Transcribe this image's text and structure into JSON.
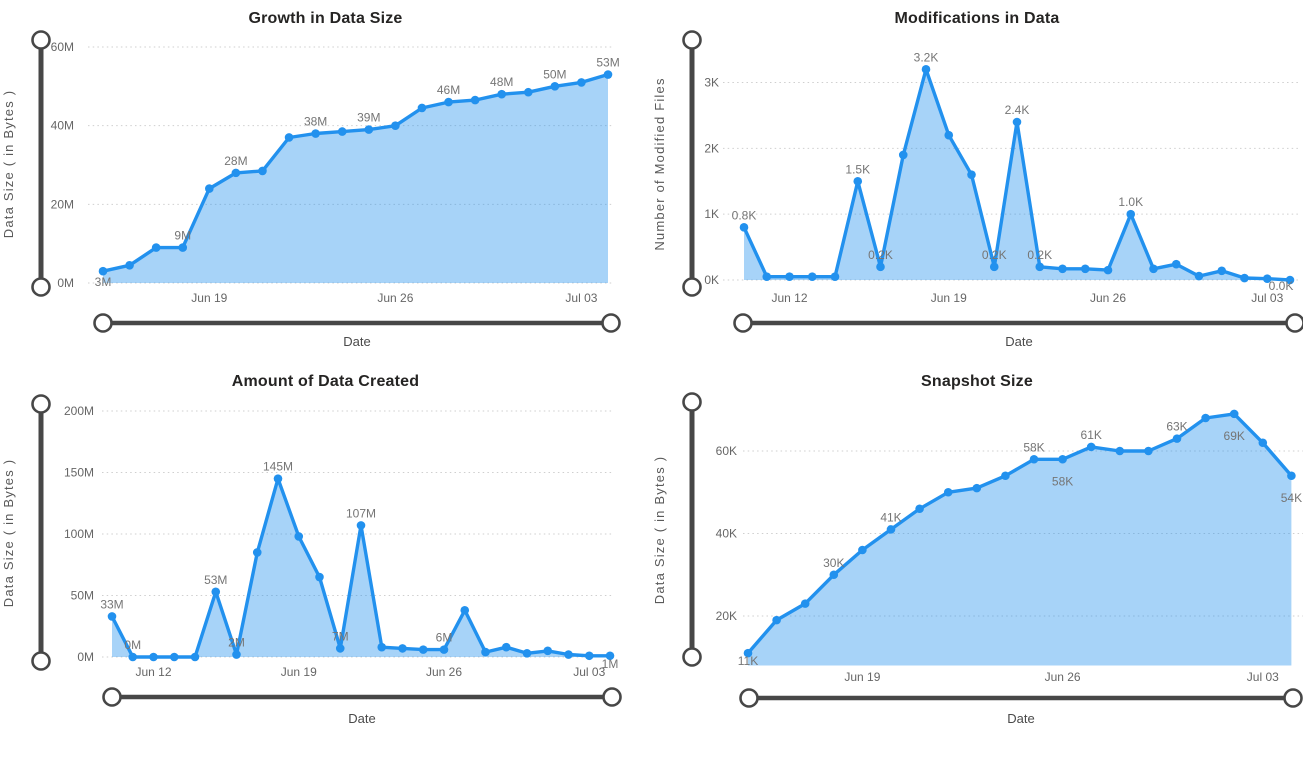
{
  "colors": {
    "line": "#2291EE",
    "area_fill": "rgba(34,145,238,0.40)",
    "slider": "#474747",
    "grid": "#CFCFCF",
    "tick_label": "#666666",
    "data_label": "#757575",
    "axis_title": "#595959",
    "title": "#252423"
  },
  "x_axis_title": "Date",
  "chart_data": [
    {
      "type": "area",
      "title": "Growth in Data Size",
      "xlabel": "Date",
      "ylabel": "Data Size ( in Bytes )",
      "unit": "M",
      "values": [
        3,
        4.5,
        9,
        9,
        24,
        28,
        28.5,
        37,
        38,
        38.5,
        39,
        40,
        44.5,
        46,
        46.5,
        48,
        48.5,
        50,
        51,
        53
      ],
      "point_labels": [
        {
          "i": 0,
          "text": "3M",
          "pos": "below"
        },
        {
          "i": 3,
          "text": "9M",
          "pos": "above"
        },
        {
          "i": 5,
          "text": "28M",
          "pos": "above"
        },
        {
          "i": 8,
          "text": "38M",
          "pos": "above"
        },
        {
          "i": 10,
          "text": "39M",
          "pos": "above"
        },
        {
          "i": 13,
          "text": "46M",
          "pos": "above"
        },
        {
          "i": 15,
          "text": "48M",
          "pos": "above"
        },
        {
          "i": 17,
          "text": "50M",
          "pos": "above"
        },
        {
          "i": 19,
          "text": "53M",
          "pos": "above"
        }
      ],
      "y_ticks": [
        {
          "v": 0,
          "label": "0M"
        },
        {
          "v": 20,
          "label": "20M"
        },
        {
          "v": 40,
          "label": "40M"
        },
        {
          "v": 60,
          "label": "60M"
        }
      ],
      "x_ticks": [
        {
          "i": 4,
          "label": "Jun 19"
        },
        {
          "i": 11,
          "label": "Jun 26"
        },
        {
          "i": 18,
          "label": "Jul 03"
        }
      ],
      "ylim": [
        0,
        62
      ],
      "grid": true,
      "legend": "none"
    },
    {
      "type": "area",
      "title": "Modifications in Data",
      "xlabel": "Date",
      "ylabel": "Number of Modified Files",
      "unit": "K",
      "values": [
        0.8,
        0.05,
        0.05,
        0.05,
        0.05,
        1.5,
        0.2,
        1.9,
        3.2,
        2.2,
        1.6,
        0.2,
        2.4,
        0.2,
        0.17,
        0.17,
        0.15,
        1.0,
        0.17,
        0.24,
        0.06,
        0.14,
        0.03,
        0.02,
        0.0
      ],
      "point_labels": [
        {
          "i": 0,
          "text": "0.8K",
          "pos": "above"
        },
        {
          "i": 5,
          "text": "1.5K",
          "pos": "above"
        },
        {
          "i": 6,
          "text": "0.2K",
          "pos": "above"
        },
        {
          "i": 8,
          "text": "3.2K",
          "pos": "above"
        },
        {
          "i": 11,
          "text": "0.2K",
          "pos": "above"
        },
        {
          "i": 12,
          "text": "2.4K",
          "pos": "above"
        },
        {
          "i": 13,
          "text": "0.2K",
          "pos": "above"
        },
        {
          "i": 17,
          "text": "1.0K",
          "pos": "above"
        },
        {
          "i": 24,
          "text": "0.0K",
          "pos": "below-left"
        }
      ],
      "y_ticks": [
        {
          "v": 0,
          "label": "0K"
        },
        {
          "v": 1,
          "label": "1K"
        },
        {
          "v": 2,
          "label": "2K"
        },
        {
          "v": 3,
          "label": "3K"
        }
      ],
      "x_ticks": [
        {
          "i": 2,
          "label": "Jun 12"
        },
        {
          "i": 9,
          "label": "Jun 19"
        },
        {
          "i": 16,
          "label": "Jun 26"
        },
        {
          "i": 23,
          "label": "Jul 03"
        }
      ],
      "ylim": [
        0,
        3.65
      ],
      "grid": true,
      "legend": "none"
    },
    {
      "type": "area",
      "title": "Amount of Data Created",
      "xlabel": "Date",
      "ylabel": "Data Size ( in Bytes )",
      "unit": "M",
      "values": [
        33,
        0,
        0,
        0,
        0,
        53,
        2,
        85,
        145,
        98,
        65,
        7,
        107,
        8,
        7,
        6,
        6,
        38,
        4,
        8,
        3,
        5,
        2,
        1,
        1
      ],
      "point_labels": [
        {
          "i": 0,
          "text": "33M",
          "pos": "above"
        },
        {
          "i": 1,
          "text": "0M",
          "pos": "above"
        },
        {
          "i": 5,
          "text": "53M",
          "pos": "above"
        },
        {
          "i": 6,
          "text": "2M",
          "pos": "above"
        },
        {
          "i": 8,
          "text": "145M",
          "pos": "above"
        },
        {
          "i": 11,
          "text": "7M",
          "pos": "above"
        },
        {
          "i": 12,
          "text": "107M",
          "pos": "above"
        },
        {
          "i": 16,
          "text": "6M",
          "pos": "above"
        },
        {
          "i": 24,
          "text": "1M",
          "pos": "near-below"
        }
      ],
      "y_ticks": [
        {
          "v": 0,
          "label": "0M"
        },
        {
          "v": 50,
          "label": "50M"
        },
        {
          "v": 100,
          "label": "100M"
        },
        {
          "v": 150,
          "label": "150M"
        },
        {
          "v": 200,
          "label": "200M"
        }
      ],
      "x_ticks": [
        {
          "i": 2,
          "label": "Jun 12"
        },
        {
          "i": 9,
          "label": "Jun 19"
        },
        {
          "i": 16,
          "label": "Jun 26"
        },
        {
          "i": 23,
          "label": "Jul 03"
        }
      ],
      "ylim": [
        0,
        205
      ],
      "grid": true,
      "legend": "none"
    },
    {
      "type": "area",
      "title": "Snapshot Size",
      "xlabel": "Date",
      "ylabel": "Data Size ( in Bytes )",
      "unit": "K",
      "values": [
        11,
        19,
        23,
        30,
        36,
        41,
        46,
        50,
        51,
        54,
        58,
        58,
        61,
        60,
        60,
        63,
        68,
        69,
        62,
        54
      ],
      "point_labels": [
        {
          "i": 0,
          "text": "11K",
          "pos": "near-below"
        },
        {
          "i": 3,
          "text": "30K",
          "pos": "above"
        },
        {
          "i": 5,
          "text": "41K",
          "pos": "above"
        },
        {
          "i": 10,
          "text": "58K",
          "pos": "above"
        },
        {
          "i": 11,
          "text": "58K",
          "pos": "far-below"
        },
        {
          "i": 12,
          "text": "61K",
          "pos": "above"
        },
        {
          "i": 15,
          "text": "63K",
          "pos": "above"
        },
        {
          "i": 17,
          "text": "69K",
          "pos": "far-below"
        },
        {
          "i": 19,
          "text": "54K",
          "pos": "far-below"
        }
      ],
      "y_ticks": [
        {
          "v": 20,
          "label": "20K"
        },
        {
          "v": 40,
          "label": "40K"
        },
        {
          "v": 60,
          "label": "60K"
        }
      ],
      "x_ticks": [
        {
          "i": 4,
          "label": "Jun 19"
        },
        {
          "i": 11,
          "label": "Jun 26"
        },
        {
          "i": 18,
          "label": "Jul 03"
        }
      ],
      "ylim": [
        8,
        73
      ],
      "grid": true,
      "legend": "none"
    }
  ]
}
